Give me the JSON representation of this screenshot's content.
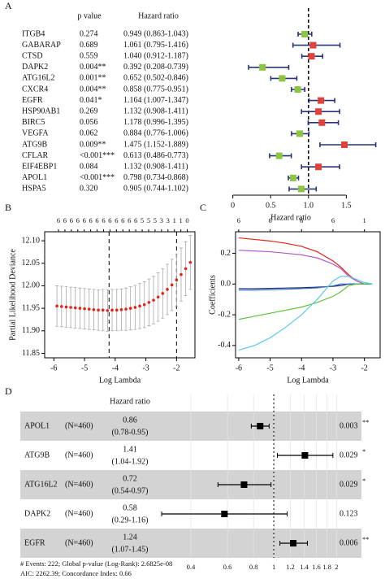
{
  "chart_data": [
    {
      "type": "forest",
      "panel": "A",
      "p_header": "p value",
      "hr_header": "Hazard ratio",
      "xlabel": "Hazard ratio",
      "xlim": [
        -0.2,
        1.7
      ],
      "xticks": [
        0,
        0.5,
        {
          "value": 1,
          "label": "1.0"
        },
        1.5
      ],
      "ref_line": 1,
      "color_below": "#8cc63f",
      "color_above": "#e2403b",
      "ci_color": "#27347a",
      "rows": [
        {
          "gene": "ITGB4",
          "p": "0.274",
          "hr": 0.949,
          "lo": 0.863,
          "hi": 1.043,
          "label": "0.949 (0.863-1.043)"
        },
        {
          "gene": "GABARAP",
          "p": "0.689",
          "hr": 1.061,
          "lo": 0.795,
          "hi": 1.416,
          "label": "1.061 (0.795-1.416)"
        },
        {
          "gene": "CTSD",
          "p": "0.559",
          "hr": 1.04,
          "lo": 0.912,
          "hi": 1.187,
          "label": "1.040 (0.912-1.187)"
        },
        {
          "gene": "DAPK2",
          "p": "0.004**",
          "hr": 0.392,
          "lo": 0.208,
          "hi": 0.739,
          "label": "0.392 (0.208-0.739)"
        },
        {
          "gene": "ATG16L2",
          "p": "0.001**",
          "hr": 0.652,
          "lo": 0.502,
          "hi": 0.846,
          "label": "0.652 (0.502-0.846)"
        },
        {
          "gene": "CXCR4",
          "p": "0.004**",
          "hr": 0.858,
          "lo": 0.775,
          "hi": 0.951,
          "label": "0.858 (0.775-0.951)"
        },
        {
          "gene": "EGFR",
          "p": "0.041*",
          "hr": 1.164,
          "lo": 1.007,
          "hi": 1.347,
          "label": "1.164 (1.007-1.347)"
        },
        {
          "gene": "HSP90AB1",
          "p": "0.269",
          "hr": 1.132,
          "lo": 0.908,
          "hi": 1.411,
          "label": "1.132 (0.908-1.411)"
        },
        {
          "gene": "BIRC5",
          "p": "0.056",
          "hr": 1.178,
          "lo": 0.996,
          "hi": 1.395,
          "label": "1.178 (0.996-1.395)"
        },
        {
          "gene": "VEGFA",
          "p": "0.062",
          "hr": 0.884,
          "lo": 0.776,
          "hi": 1.006,
          "label": "0.884 (0.776-1.006)"
        },
        {
          "gene": "ATG9B",
          "p": "0.009**",
          "hr": 1.475,
          "lo": 1.152,
          "hi": 1.889,
          "label": "1.475 (1.152-1.889)"
        },
        {
          "gene": "CFLAR",
          "p": "<0.001***",
          "hr": 0.613,
          "lo": 0.486,
          "hi": 0.773,
          "label": "0.613 (0.486-0.773)"
        },
        {
          "gene": "EIF4EBP1",
          "p": "0.084",
          "hr": 1.132,
          "lo": 0.908,
          "hi": 1.411,
          "label": "1.132 (0.908-1.411)"
        },
        {
          "gene": "APOL1",
          "p": "<0.001***",
          "hr": 0.798,
          "lo": 0.734,
          "hi": 0.868,
          "label": "0.798 (0.734-0.868)"
        },
        {
          "gene": "HSPA5",
          "p": "0.320",
          "hr": 0.905,
          "lo": 0.744,
          "hi": 1.102,
          "label": "0.905 (0.744-1.102)"
        }
      ]
    },
    {
      "type": "lasso_cv",
      "panel": "B",
      "xlabel": "Log Lambda",
      "ylabel": "Partial Likelihood Deviance",
      "xlim": [
        -6.3,
        -1.4
      ],
      "xticks": [
        -6,
        -5,
        -4,
        -3,
        -2
      ],
      "ylim": [
        11.84,
        12.12
      ],
      "yticks": [
        11.85,
        {
          "value": 11.9,
          "label": "11.90"
        },
        11.95,
        {
          "value": 12,
          "label": "12.00"
        },
        12.05,
        {
          "value": 12.1,
          "label": "12.10"
        }
      ],
      "color": "#e2231a",
      "error_color": "#a9a9a9",
      "vlines": [
        -4.2,
        -2.0
      ],
      "top_ticks_x": [
        -5.85,
        -5.64,
        -5.43,
        -5.22,
        -5.01,
        -4.8,
        -4.59,
        -4.38,
        -4.17,
        -3.96,
        -3.75,
        -3.54,
        -3.33,
        -3.12,
        -2.91,
        -2.7,
        -2.49,
        -2.28,
        -2.07,
        -1.86,
        -1.65
      ],
      "top_labels": [
        6,
        6,
        6,
        6,
        6,
        6,
        6,
        6,
        6,
        6,
        6,
        6,
        6,
        5,
        5,
        5,
        3,
        3,
        1,
        1,
        0
      ],
      "x": [
        -5.9,
        -5.75,
        -5.6,
        -5.45,
        -5.3,
        -5.15,
        -5,
        -4.85,
        -4.7,
        -4.55,
        -4.4,
        -4.25,
        -4.1,
        -3.95,
        -3.8,
        -3.65,
        -3.5,
        -3.35,
        -3.2,
        -3.05,
        -2.9,
        -2.75,
        -2.6,
        -2.45,
        -2.3,
        -2.15,
        -2,
        -1.85,
        -1.7,
        -1.55
      ],
      "values": [
        11.955,
        11.954,
        11.953,
        11.952,
        11.951,
        11.95,
        11.949,
        11.948,
        11.947,
        11.946,
        11.946,
        11.945,
        11.946,
        11.946,
        11.947,
        11.948,
        11.95,
        11.952,
        11.955,
        11.958,
        11.963,
        11.968,
        11.975,
        11.983,
        11.992,
        12.002,
        12.013,
        12.025,
        12.038,
        12.052
      ],
      "errors": [
        0.045,
        0.045,
        0.045,
        0.045,
        0.045,
        0.045,
        0.045,
        0.045,
        0.045,
        0.045,
        0.046,
        0.046,
        0.046,
        0.046,
        0.046,
        0.047,
        0.048,
        0.049,
        0.05,
        0.051,
        0.052,
        0.053,
        0.054,
        0.055,
        0.056,
        0.057,
        0.058,
        0.059,
        0.06,
        0.06
      ]
    },
    {
      "type": "coef_path",
      "panel": "C",
      "xlabel": "Log Lambda",
      "ylabel": "Coefficients",
      "xlim": [
        -6.1,
        -1.5
      ],
      "xticks": [
        -6,
        -5,
        -4,
        -3,
        -2
      ],
      "ylim": [
        -0.48,
        0.34
      ],
      "yticks": [
        -0.4,
        -0.2,
        {
          "value": 0,
          "label": "0.0"
        },
        0.2
      ],
      "top_ticks_x": [
        -6,
        -5,
        -4,
        -3,
        -2
      ],
      "top_labels": [
        6,
        6,
        6,
        6,
        1
      ],
      "x": [
        -6,
        -5.5,
        -5,
        -4.5,
        -4,
        -3.5,
        -3,
        -2.75,
        -2.5,
        -2.25,
        -2,
        -1.75
      ],
      "series": [
        {
          "color": "#e2231a",
          "values": [
            0.3,
            0.29,
            0.28,
            0.265,
            0.245,
            0.21,
            0.15,
            0.11,
            0.06,
            0.02,
            0,
            0
          ]
        },
        {
          "color": "#b15cc9",
          "values": [
            0.22,
            0.215,
            0.21,
            0.2,
            0.19,
            0.17,
            0.13,
            0.1,
            0.05,
            0.02,
            0,
            0
          ]
        },
        {
          "color": "#1b2a6b",
          "values": [
            -0.03,
            -0.03,
            -0.028,
            -0.026,
            -0.024,
            -0.02,
            -0.015,
            -0.01,
            0,
            0,
            0,
            0
          ]
        },
        {
          "color": "#3a6fc4",
          "values": [
            -0.04,
            -0.039,
            -0.037,
            -0.034,
            -0.03,
            -0.025,
            -0.012,
            0,
            0,
            0,
            0,
            0
          ]
        },
        {
          "color": "#5cc43a",
          "values": [
            -0.23,
            -0.21,
            -0.19,
            -0.17,
            -0.15,
            -0.12,
            -0.08,
            -0.05,
            -0.01,
            0,
            0,
            0
          ]
        },
        {
          "color": "#5cc8ea",
          "values": [
            -0.43,
            -0.4,
            -0.35,
            -0.28,
            -0.2,
            -0.1,
            0.02,
            0.05,
            0.05,
            0.03,
            0.01,
            0
          ]
        }
      ]
    },
    {
      "type": "forest_table",
      "panel": "D",
      "hr_header": "Hazard ratio",
      "log_scale": true,
      "xlim": [
        0.35,
        2.2
      ],
      "xticks": [
        0.4,
        0.6,
        0.8,
        1,
        1.2,
        1.4,
        1.6,
        1.8,
        2
      ],
      "ref_line": 1,
      "row_color": "#d3d3d3",
      "footer": [
        "# Events: 222; Global p-value (Log-Rank): 2.6825e-08",
        "AIC: 2262.39; Concordance Index: 0.66"
      ],
      "rows": [
        {
          "gene": "APOL1",
          "n": "(N=460)",
          "hr_label": "0.86",
          "ci_label": "(0.78-0.95)",
          "hr": 0.86,
          "lo": 0.78,
          "hi": 0.95,
          "p": "0.003",
          "stars": "**"
        },
        {
          "gene": "ATG9B",
          "n": "(N=460)",
          "hr_label": "1.41",
          "ci_label": "(1.04-1.92)",
          "hr": 1.41,
          "lo": 1.04,
          "hi": 1.92,
          "p": "0.029",
          "stars": "*"
        },
        {
          "gene": "ATG16L2",
          "n": "(N=460)",
          "hr_label": "0.72",
          "ci_label": "(0.54-0.97)",
          "hr": 0.72,
          "lo": 0.54,
          "hi": 0.97,
          "p": "0.029",
          "stars": "*"
        },
        {
          "gene": "DAPK2",
          "n": "(N=460)",
          "hr_label": "0.58",
          "ci_label": "(0.29-1.16)",
          "hr": 0.58,
          "lo": 0.29,
          "hi": 1.16,
          "p": "0.123"
        },
        {
          "gene": "EGFR",
          "n": "(N=460)",
          "hr_label": "1.24",
          "ci_label": "(1.07-1.45)",
          "hr": 1.24,
          "lo": 1.07,
          "hi": 1.45,
          "p": "0.006",
          "stars": "**"
        }
      ]
    }
  ]
}
